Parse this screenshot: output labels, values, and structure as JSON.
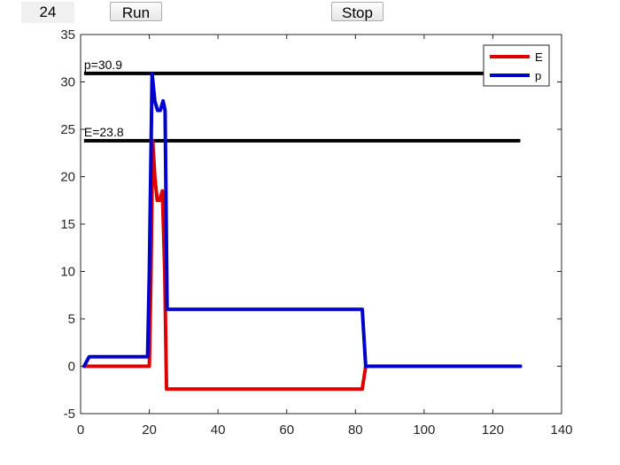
{
  "controls": {
    "counter_value": "24",
    "run_label": "Run",
    "stop_label": "Stop"
  },
  "colors": {
    "E": "#dd0000",
    "p": "#0000cc",
    "threshold": "#000000"
  },
  "chart_data": {
    "type": "line",
    "title": "",
    "xlabel": "",
    "ylabel": "",
    "xlim": [
      0,
      140
    ],
    "ylim": [
      -5,
      35
    ],
    "xticks": [
      0,
      20,
      40,
      60,
      80,
      100,
      120,
      140
    ],
    "yticks": [
      -5,
      0,
      5,
      10,
      15,
      20,
      25,
      30,
      35
    ],
    "grid": false,
    "legend_position": "top-right",
    "series": [
      {
        "name": "E",
        "color": "#dd0000",
        "x": [
          1,
          20,
          20.5,
          21,
          21.6,
          22.3,
          23,
          23.8,
          24.5,
          25,
          82,
          83,
          128
        ],
        "y": [
          0,
          0,
          10,
          23.8,
          20,
          17.5,
          17.5,
          18.5,
          10,
          -2.4,
          -2.4,
          0,
          0
        ]
      },
      {
        "name": "p",
        "color": "#0000cc",
        "x": [
          1,
          2.5,
          19.5,
          20,
          20.8,
          21.6,
          22.4,
          23.2,
          24,
          24.6,
          25.2,
          82,
          83,
          128
        ],
        "y": [
          0,
          1,
          1,
          10,
          30.9,
          28,
          27,
          27,
          28,
          27,
          6,
          6,
          0,
          0
        ]
      }
    ],
    "hlines": [
      {
        "label": "p=30.9",
        "value": 30.9,
        "x_start": 1,
        "x_end": 128
      },
      {
        "label": "E=23.8",
        "value": 23.8,
        "x_start": 1,
        "x_end": 128
      }
    ]
  }
}
